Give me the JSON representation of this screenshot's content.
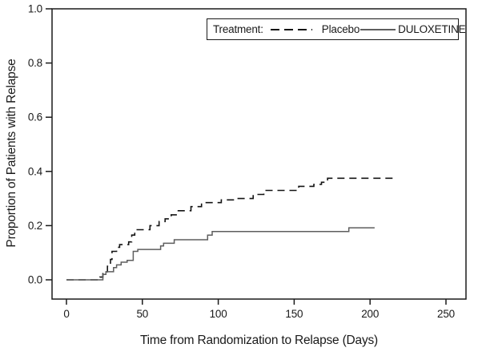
{
  "figure": {
    "background": "#ffffff",
    "frame_color": "#1a1a1a",
    "text_color": "#1a1a1a"
  },
  "legend": {
    "title": "Treatment:",
    "position": "top-right"
  },
  "chart_data": {
    "type": "line",
    "subtype": "kaplan-meier-step",
    "title": "",
    "xlabel": "Time from Randomization to Relapse (Days)",
    "ylabel": "Proportion of Patients with Relapse",
    "xlim": [
      0,
      250
    ],
    "ylim": [
      0.0,
      1.0
    ],
    "x_ticks": [
      0,
      50,
      100,
      150,
      200,
      250
    ],
    "y_ticks": [
      0.0,
      0.2,
      0.4,
      0.6,
      0.8,
      1.0
    ],
    "y_tick_labels": [
      "0.0",
      "0.2",
      "0.4",
      "0.6",
      "0.8",
      "1.0"
    ],
    "grid": false,
    "legend_position": "top-right",
    "series": [
      {
        "name": "Placebo",
        "line": "dashed",
        "color": "#141414",
        "width": 1.6,
        "steps": [
          [
            0,
            0
          ],
          [
            21,
            0
          ],
          [
            22,
            0.01
          ],
          [
            24,
            0.03
          ],
          [
            27,
            0.05
          ],
          [
            29,
            0.075
          ],
          [
            30,
            0.105
          ],
          [
            33,
            0.12
          ],
          [
            35,
            0.13
          ],
          [
            41,
            0.14
          ],
          [
            43,
            0.165
          ],
          [
            45,
            0.185
          ],
          [
            55,
            0.2
          ],
          [
            61,
            0.215
          ],
          [
            65,
            0.225
          ],
          [
            69,
            0.24
          ],
          [
            73,
            0.255
          ],
          [
            82,
            0.27
          ],
          [
            89,
            0.285
          ],
          [
            102,
            0.295
          ],
          [
            112,
            0.3
          ],
          [
            123,
            0.315
          ],
          [
            130,
            0.33
          ],
          [
            153,
            0.345
          ],
          [
            163,
            0.352
          ],
          [
            168,
            0.36
          ],
          [
            172,
            0.375
          ],
          [
            215,
            0.375
          ]
        ]
      },
      {
        "name": "DULOXETINE",
        "line": "solid",
        "color": "#5e5e5e",
        "width": 1.5,
        "steps": [
          [
            0,
            0
          ],
          [
            23,
            0
          ],
          [
            24,
            0.02
          ],
          [
            26,
            0.03
          ],
          [
            31,
            0.045
          ],
          [
            33,
            0.055
          ],
          [
            36,
            0.065
          ],
          [
            40,
            0.072
          ],
          [
            44,
            0.105
          ],
          [
            47,
            0.112
          ],
          [
            62,
            0.125
          ],
          [
            64,
            0.135
          ],
          [
            71,
            0.148
          ],
          [
            93,
            0.165
          ],
          [
            96,
            0.178
          ],
          [
            186,
            0.192
          ],
          [
            203,
            0.192
          ]
        ]
      }
    ]
  }
}
